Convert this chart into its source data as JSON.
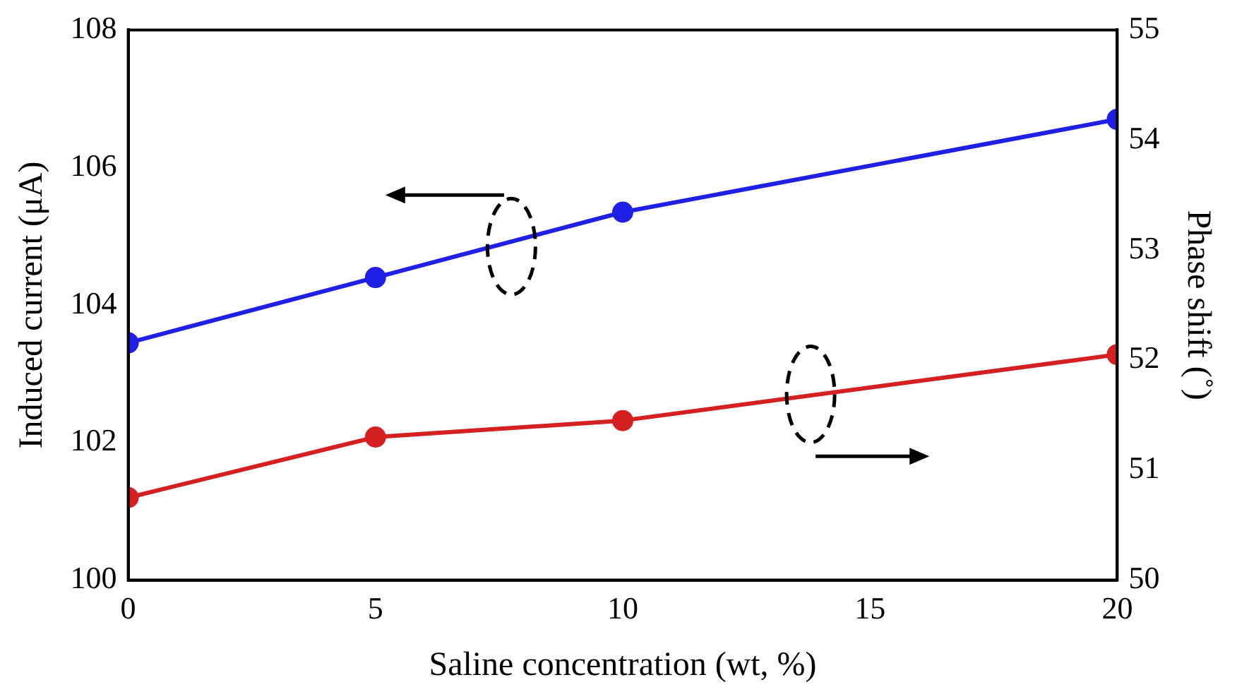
{
  "chart_data": {
    "type": "line",
    "xlabel": "Saline concentration (wt, %)",
    "ylabel": "Induced current (μA)",
    "y2label": "Phase shift (˚)",
    "x": [
      0,
      5,
      10,
      20
    ],
    "series": [
      {
        "color": "#1f1fe6",
        "values": [
          103.45,
          104.4,
          105.35,
          106.7
        ]
      },
      {
        "color": "#d42020",
        "values": [
          50.75,
          51.3,
          51.45,
          52.05
        ],
        "axis": "y2"
      }
    ],
    "xlim": [
      0,
      20
    ],
    "xticks": [
      0,
      5,
      10,
      15,
      20
    ],
    "ylim": [
      100,
      108
    ],
    "yticks": [
      100,
      102,
      104,
      106,
      108
    ],
    "y2lim": [
      50,
      55
    ],
    "y2ticks": [
      50,
      51,
      52,
      53,
      54,
      55
    ],
    "grid": false,
    "legend": false,
    "marker": "circle",
    "line_style": "solid"
  }
}
